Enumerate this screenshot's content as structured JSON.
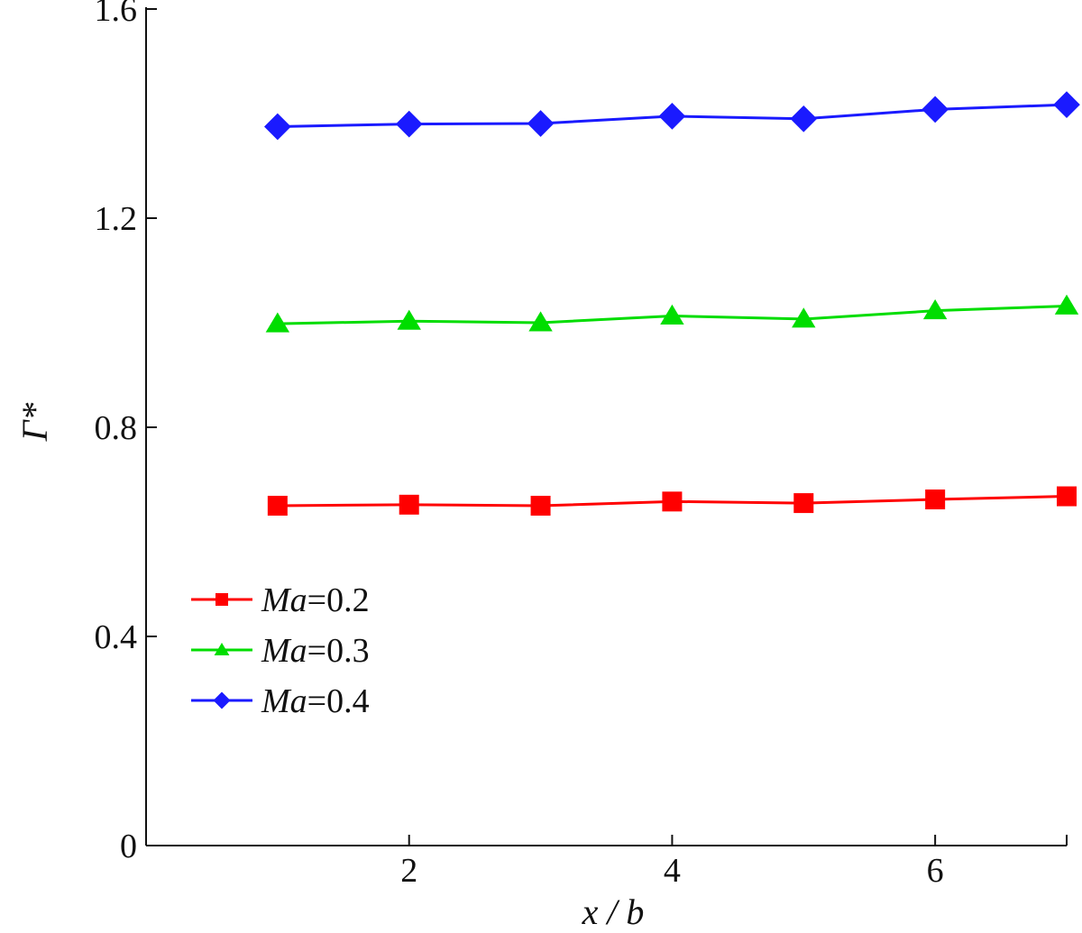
{
  "chart_data": {
    "type": "line",
    "title": "",
    "xlabel": "x / b",
    "ylabel": "Γ*",
    "x": [
      1,
      2,
      3,
      4,
      5,
      6,
      7
    ],
    "xlim": [
      0,
      7
    ],
    "ylim": [
      0,
      1.6
    ],
    "xticks": [
      2,
      4,
      6
    ],
    "yticks": [
      0,
      0.4,
      0.8,
      1.2,
      1.6
    ],
    "xtick_labels": [
      "2",
      "4",
      "6"
    ],
    "ytick_labels": [
      "0",
      "0.4",
      "0.8",
      "1.2",
      "1.6"
    ],
    "grid": false,
    "legend_position": "lower-left",
    "series": [
      {
        "name": "Ma=0.2",
        "name_italic": "Ma",
        "name_rest": "=0.2",
        "color": "#ff0000",
        "marker": "square",
        "values": [
          0.65,
          0.652,
          0.65,
          0.658,
          0.655,
          0.662,
          0.668
        ]
      },
      {
        "name": "Ma=0.3",
        "name_italic": "Ma",
        "name_rest": "=0.3",
        "color": "#00dd00",
        "marker": "triangle",
        "values": [
          0.998,
          1.003,
          1.0,
          1.013,
          1.007,
          1.023,
          1.032
        ]
      },
      {
        "name": "Ma=0.4",
        "name_italic": "Ma",
        "name_rest": "=0.4",
        "color": "#1a1aff",
        "marker": "diamond",
        "values": [
          1.375,
          1.38,
          1.381,
          1.395,
          1.39,
          1.408,
          1.417
        ]
      }
    ]
  }
}
